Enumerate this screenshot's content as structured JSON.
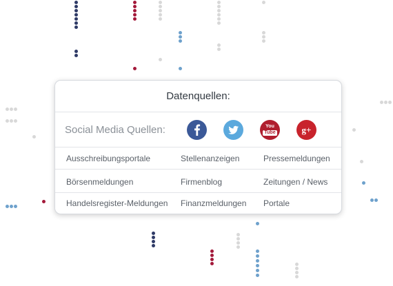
{
  "card": {
    "title": "Datenquellen:",
    "social_label": "Social Media Quellen:",
    "social_icons": [
      {
        "name": "facebook-icon",
        "color": "#3b5998"
      },
      {
        "name": "twitter-icon",
        "color": "#5ba9dd"
      },
      {
        "name": "youtube-icon",
        "color": "#b01e2e"
      },
      {
        "name": "google-plus-icon",
        "color": "#c8232c"
      }
    ],
    "youtube_text": [
      "You",
      "Tube"
    ],
    "google_text": "g+",
    "sources": [
      [
        "Ausschreibungsportale",
        "Stellenanzeigen",
        "Pressemeldungen"
      ],
      [
        "Börsenmeldungen",
        "Firmenblog",
        "Zeitungen / News"
      ],
      [
        "Handelsregister-Meldungen",
        "Finanzmeldungen",
        "Portale"
      ]
    ]
  },
  "colors": {
    "navy": "#2e3a66",
    "crimson": "#a3193a",
    "light_gray": "#d8d8d8",
    "blue": "#6ea1cc"
  }
}
